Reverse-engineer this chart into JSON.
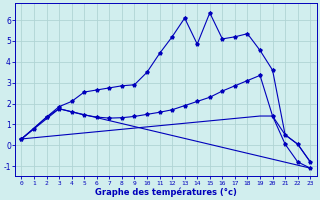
{
  "xlabel": "Graphe des températures (°c)",
  "xlim": [
    -0.5,
    23.5
  ],
  "ylim": [
    -1.5,
    6.8
  ],
  "yticks": [
    -1,
    0,
    1,
    2,
    3,
    4,
    5,
    6
  ],
  "xticks": [
    0,
    1,
    2,
    3,
    4,
    5,
    6,
    7,
    8,
    9,
    10,
    11,
    12,
    13,
    14,
    15,
    16,
    17,
    18,
    19,
    20,
    21,
    22,
    23
  ],
  "bg_color": "#d1eeee",
  "line_color": "#0000bb",
  "grid_color": "#b0d4d4",
  "series1_x": [
    0,
    1,
    2,
    3,
    4,
    5,
    6,
    7,
    8,
    9,
    10,
    11,
    12,
    13,
    14,
    15,
    16,
    17,
    18,
    19,
    20,
    21,
    22,
    23
  ],
  "series1_y": [
    0.3,
    0.8,
    1.35,
    1.85,
    2.1,
    2.55,
    2.65,
    2.75,
    2.85,
    2.9,
    3.5,
    4.4,
    5.2,
    6.1,
    4.85,
    6.35,
    5.1,
    5.2,
    5.35,
    4.55,
    3.6,
    0.5,
    0.05,
    -0.8
  ],
  "series2_x": [
    0,
    2,
    3,
    4,
    5,
    6,
    7,
    8,
    9,
    10,
    11,
    12,
    13,
    14,
    15,
    16,
    17,
    18,
    19,
    20,
    21,
    22,
    23
  ],
  "series2_y": [
    0.3,
    1.35,
    1.75,
    1.6,
    1.45,
    1.35,
    1.3,
    1.32,
    1.38,
    1.48,
    1.58,
    1.7,
    1.9,
    2.1,
    2.3,
    2.6,
    2.85,
    3.1,
    3.35,
    1.4,
    0.05,
    -0.8,
    -1.1
  ],
  "series3_x": [
    0,
    19,
    20,
    21,
    22,
    23
  ],
  "series3_y": [
    0.3,
    1.4,
    1.4,
    0.5,
    0.05,
    -0.8
  ],
  "series4_x": [
    0,
    3,
    23
  ],
  "series4_y": [
    0.3,
    1.75,
    -1.1
  ]
}
